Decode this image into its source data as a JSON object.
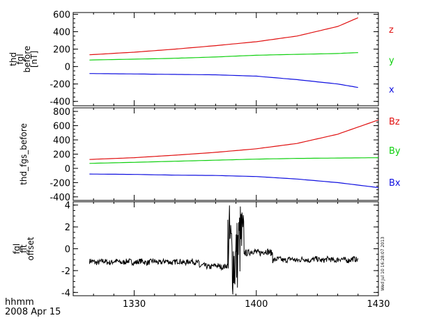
{
  "chart_data": [
    {
      "type": "line",
      "ylabel_lines": [
        "thd",
        "fgl",
        "before",
        "[nT]"
      ],
      "ylim": [
        -450,
        620
      ],
      "yticks": [
        -400,
        -200,
        0,
        200,
        400,
        600
      ],
      "ytick_labels": [
        "-400",
        "-200",
        "0",
        "200",
        "400",
        "600"
      ],
      "x_hhmm": [
        "13:19",
        "13:30",
        "13:40",
        "13:50",
        "14:00",
        "14:10",
        "14:20",
        "14:25"
      ],
      "series": [
        {
          "name": "z",
          "color": "#e01010",
          "values": [
            135,
            165,
            200,
            240,
            285,
            350,
            460,
            560
          ]
        },
        {
          "name": "y",
          "color": "#10d010",
          "values": [
            75,
            85,
            95,
            110,
            130,
            140,
            150,
            160
          ]
        },
        {
          "name": "x",
          "color": "#1010e0",
          "values": [
            -80,
            -85,
            -90,
            -95,
            -110,
            -150,
            -200,
            -240
          ]
        }
      ]
    },
    {
      "type": "line",
      "ylabel_lines": [
        "thd_fgs_before"
      ],
      "ylim": [
        -450,
        850
      ],
      "yticks": [
        -400,
        -200,
        0,
        200,
        400,
        600,
        800
      ],
      "ytick_labels": [
        "-400",
        "-200",
        "0",
        "200",
        "400",
        "600",
        "800"
      ],
      "x_hhmm": [
        "13:19",
        "13:30",
        "13:40",
        "13:50",
        "14:00",
        "14:10",
        "14:20",
        "14:30"
      ],
      "series": [
        {
          "name": "Bz",
          "color": "#e01010",
          "values": [
            125,
            150,
            185,
            225,
            275,
            350,
            480,
            680
          ]
        },
        {
          "name": "By",
          "color": "#10d010",
          "values": [
            70,
            85,
            100,
            115,
            130,
            140,
            145,
            150
          ]
        },
        {
          "name": "Bx",
          "color": "#1010e0",
          "values": [
            -80,
            -85,
            -95,
            -100,
            -115,
            -150,
            -200,
            -270
          ]
        }
      ]
    },
    {
      "type": "line",
      "ylabel_lines": [
        "fgl",
        "fit",
        "offset"
      ],
      "ylim": [
        -4.3,
        4.3
      ],
      "yticks": [
        -4,
        -2,
        0,
        2,
        4
      ],
      "ytick_labels": [
        "-4",
        "-2",
        "0",
        "2",
        "4"
      ],
      "segments": [
        {
          "from": "13:19",
          "to": "13:46",
          "level": -1.2,
          "noise": 0.25
        },
        {
          "from": "13:46",
          "to": "13:53",
          "level": -1.6,
          "noise": 0.25
        },
        {
          "from": "13:53",
          "to": "13:57",
          "level": -0.2,
          "noise": 3.6
        },
        {
          "from": "13:57",
          "to": "14:04",
          "level": -0.3,
          "noise": 0.3
        },
        {
          "from": "14:04",
          "to": "14:25",
          "level": -1.0,
          "noise": 0.25
        }
      ],
      "series": [
        {
          "color": "#000000"
        }
      ]
    }
  ],
  "xaxis": {
    "range_hhmm": [
      "13:15",
      "14:30"
    ],
    "ticks_hhmm": [
      "13:30",
      "14:00",
      "14:30"
    ],
    "tick_labels": [
      "1330",
      "1400",
      "1430"
    ]
  },
  "footer": {
    "line1": "hhmm",
    "line2": "2008 Apr 15"
  },
  "stamp": "Wed Jul 10 16:28:07 2013"
}
